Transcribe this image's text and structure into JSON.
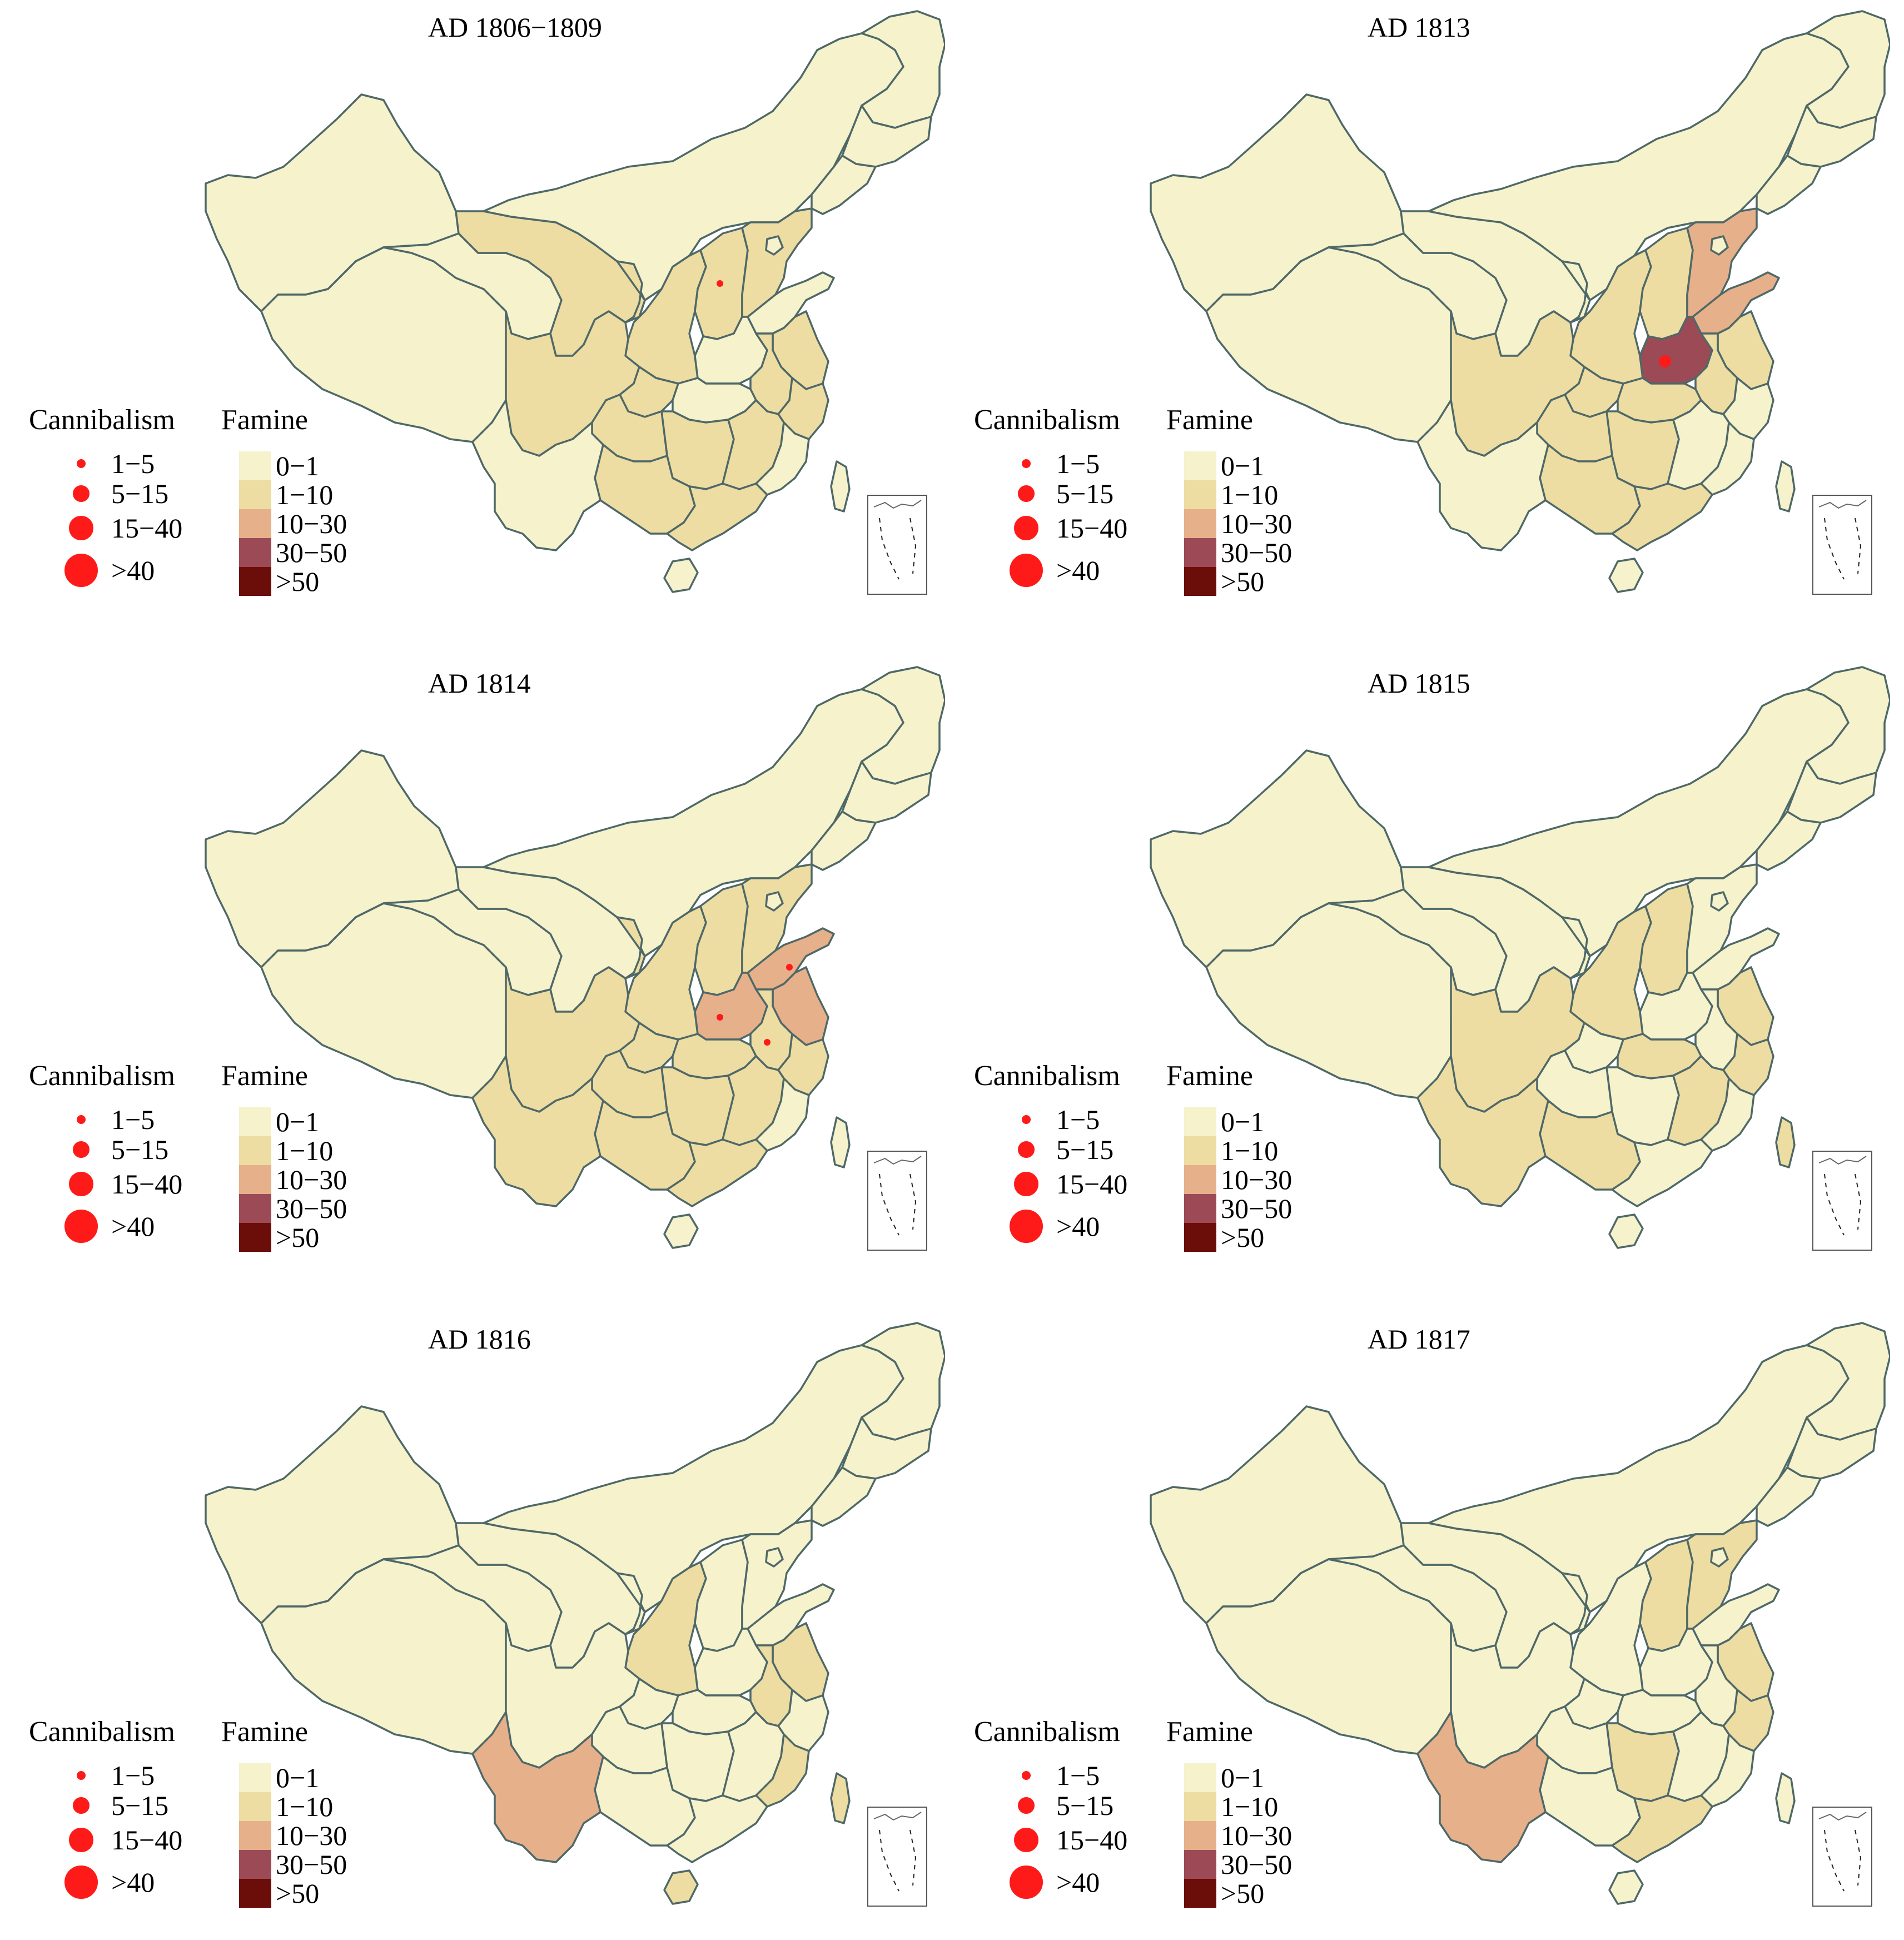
{
  "legend": {
    "cannibalism_title": "Cannibalism",
    "famine_title": "Famine",
    "cannibalism_classes": [
      "1−5",
      "5−15",
      "15−40",
      ">40"
    ],
    "famine_classes": [
      "0−1",
      "1−10",
      "10−30",
      "30−50",
      ">50"
    ],
    "famine_colors": [
      "#f5f2cc",
      "#eddda2",
      "#e6b08a",
      "#9c4a55",
      "#6b0d08"
    ],
    "dot_color": "#ff1a1a",
    "border_color": "#4f6868"
  },
  "panels": [
    {
      "title": "AD 1806−1809",
      "famine_class_by_region": {
        "xinjiang": 0,
        "tibet": 0,
        "qinghai": 0,
        "gansu": 1,
        "inner_mongolia": 0,
        "heilongjiang": 0,
        "jilin": 0,
        "liaoning": 0,
        "hebei": 1,
        "beijing": 0,
        "shanxi": 1,
        "shaanxi": 1,
        "ningxia": 1,
        "henan": 0,
        "shandong": 0,
        "jiangsu": 1,
        "anhui": 1,
        "zhejiang": 1,
        "sichuan": 1,
        "chongqing": 1,
        "hubei": 0,
        "hunan": 1,
        "jiangxi": 1,
        "fujian": 0,
        "guangdong": 1,
        "guangxi": 1,
        "guizhou": 1,
        "yunnan": 0,
        "hainan": 0,
        "taiwan": 0
      },
      "cannibalism": [
        {
          "region": "shanxi",
          "class": 0
        }
      ]
    },
    {
      "title": "AD 1813",
      "famine_class_by_region": {
        "xinjiang": 0,
        "tibet": 0,
        "qinghai": 0,
        "gansu": 0,
        "inner_mongolia": 0,
        "heilongjiang": 0,
        "jilin": 0,
        "liaoning": 0,
        "hebei": 2,
        "beijing": 0,
        "shanxi": 1,
        "shaanxi": 1,
        "ningxia": 0,
        "henan": 3,
        "shandong": 2,
        "jiangsu": 1,
        "anhui": 1,
        "zhejiang": 0,
        "sichuan": 1,
        "chongqing": 1,
        "hubei": 1,
        "hunan": 1,
        "jiangxi": 0,
        "fujian": 0,
        "guangdong": 1,
        "guangxi": 1,
        "guizhou": 1,
        "yunnan": 0,
        "hainan": 0,
        "taiwan": 0
      },
      "cannibalism": [
        {
          "region": "henan",
          "class": 1
        }
      ]
    },
    {
      "title": "AD 1814",
      "famine_class_by_region": {
        "xinjiang": 0,
        "tibet": 0,
        "qinghai": 0,
        "gansu": 0,
        "inner_mongolia": 0,
        "heilongjiang": 0,
        "jilin": 0,
        "liaoning": 0,
        "hebei": 1,
        "beijing": 0,
        "shanxi": 1,
        "shaanxi": 1,
        "ningxia": 1,
        "henan": 2,
        "shandong": 2,
        "jiangsu": 2,
        "anhui": 1,
        "zhejiang": 1,
        "sichuan": 1,
        "chongqing": 1,
        "hubei": 1,
        "hunan": 1,
        "jiangxi": 1,
        "fujian": 0,
        "guangdong": 1,
        "guangxi": 1,
        "guizhou": 1,
        "yunnan": 1,
        "hainan": 0,
        "taiwan": 0
      },
      "cannibalism": [
        {
          "region": "henan",
          "class": 0
        },
        {
          "region": "shandong",
          "class": 0
        },
        {
          "region": "anhui",
          "class": 0
        }
      ]
    },
    {
      "title": "AD 1815",
      "famine_class_by_region": {
        "xinjiang": 0,
        "tibet": 0,
        "qinghai": 0,
        "gansu": 0,
        "inner_mongolia": 0,
        "heilongjiang": 0,
        "jilin": 0,
        "liaoning": 0,
        "hebei": 0,
        "beijing": 0,
        "shanxi": 1,
        "shaanxi": 1,
        "ningxia": 0,
        "henan": 0,
        "shandong": 0,
        "jiangsu": 1,
        "anhui": 0,
        "zhejiang": 1,
        "sichuan": 1,
        "chongqing": 0,
        "hubei": 1,
        "hunan": 0,
        "jiangxi": 1,
        "fujian": 0,
        "guangdong": 0,
        "guangxi": 1,
        "guizhou": 0,
        "yunnan": 1,
        "hainan": 0,
        "taiwan": 1
      },
      "cannibalism": []
    },
    {
      "title": "AD 1816",
      "famine_class_by_region": {
        "xinjiang": 0,
        "tibet": 0,
        "qinghai": 0,
        "gansu": 0,
        "inner_mongolia": 0,
        "heilongjiang": 0,
        "jilin": 0,
        "liaoning": 0,
        "hebei": 0,
        "beijing": 0,
        "shanxi": 0,
        "shaanxi": 1,
        "ningxia": 0,
        "henan": 0,
        "shandong": 0,
        "jiangsu": 1,
        "anhui": 1,
        "zhejiang": 0,
        "sichuan": 0,
        "chongqing": 0,
        "hubei": 0,
        "hunan": 0,
        "jiangxi": 0,
        "fujian": 1,
        "guangdong": 0,
        "guangxi": 0,
        "guizhou": 0,
        "yunnan": 2,
        "hainan": 1,
        "taiwan": 1
      },
      "cannibalism": []
    },
    {
      "title": "AD 1817",
      "famine_class_by_region": {
        "xinjiang": 0,
        "tibet": 0,
        "qinghai": 0,
        "gansu": 0,
        "inner_mongolia": 0,
        "heilongjiang": 0,
        "jilin": 0,
        "liaoning": 0,
        "hebei": 1,
        "beijing": 0,
        "shanxi": 1,
        "shaanxi": 0,
        "ningxia": 0,
        "henan": 0,
        "shandong": 0,
        "jiangsu": 1,
        "anhui": 0,
        "zhejiang": 1,
        "sichuan": 0,
        "chongqing": 0,
        "hubei": 0,
        "hunan": 1,
        "jiangxi": 0,
        "fujian": 0,
        "guangdong": 1,
        "guangxi": 0,
        "guizhou": 0,
        "yunnan": 2,
        "hainan": 0,
        "taiwan": 0
      },
      "cannibalism": []
    }
  ]
}
